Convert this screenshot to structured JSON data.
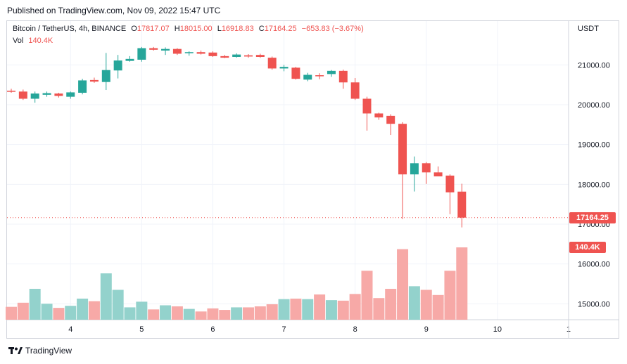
{
  "header": {
    "published": "Published on TradingView.com, Nov 09, 2022 15:47 UTC"
  },
  "legend": {
    "symbol": "Bitcoin / TetherUS, 4h, BINANCE",
    "open_label": "O",
    "open_value": "17817.07",
    "high_label": "H",
    "high_value": "18015.00",
    "low_label": "L",
    "low_value": "16918.83",
    "close_label": "C",
    "close_value": "17164.25",
    "change": "−653.83 (−3.67%)",
    "vol_label": "Vol",
    "vol_value": "140.4K"
  },
  "price_axis": {
    "unit": "USDT",
    "last_price_badge": "17164.25",
    "volume_badge": "140.4K"
  },
  "footer": {
    "brand": "TradingView"
  },
  "colors": {
    "up": "#26a69a",
    "down": "#ef5350",
    "up_volume": "#93d2cc",
    "down_volume": "#f7a9a7",
    "grid": "#f0f3fa",
    "border": "#d1d4dc"
  },
  "chart_data": {
    "type": "candlestick",
    "timeframe": "4h",
    "ylim": [
      14600,
      22100
    ],
    "y_ticks": [
      15000,
      16000,
      17000,
      18000,
      19000,
      20000,
      21000
    ],
    "y_tick_labels": [
      "15000.00",
      "16000.00",
      "17000.00",
      "18000.00",
      "19000.00",
      "20000.00",
      "21000.00"
    ],
    "x_ticks": [
      {
        "label": "4",
        "index": 5
      },
      {
        "label": "5",
        "index": 11
      },
      {
        "label": "6",
        "index": 17
      },
      {
        "label": "7",
        "index": 23
      },
      {
        "label": "8",
        "index": 29
      },
      {
        "label": "9",
        "index": 35
      },
      {
        "label": "10",
        "index": 41
      },
      {
        "label": "1",
        "index": 47
      }
    ],
    "last_close": 17164.25,
    "volume_scale_max": 150000,
    "candles": [
      {
        "o": 20350,
        "h": 20400,
        "l": 20300,
        "c": 20330,
        "v": 25000
      },
      {
        "o": 20330,
        "h": 20380,
        "l": 20120,
        "c": 20150,
        "v": 33000
      },
      {
        "o": 20150,
        "h": 20330,
        "l": 20050,
        "c": 20280,
        "v": 60000
      },
      {
        "o": 20250,
        "h": 20330,
        "l": 20200,
        "c": 20290,
        "v": 31000
      },
      {
        "o": 20280,
        "h": 20300,
        "l": 20180,
        "c": 20220,
        "v": 23000
      },
      {
        "o": 20200,
        "h": 20330,
        "l": 20150,
        "c": 20310,
        "v": 27000
      },
      {
        "o": 20300,
        "h": 20650,
        "l": 20260,
        "c": 20610,
        "v": 41000
      },
      {
        "o": 20620,
        "h": 20680,
        "l": 20550,
        "c": 20580,
        "v": 36000
      },
      {
        "o": 20570,
        "h": 21300,
        "l": 20370,
        "c": 20870,
        "v": 90000
      },
      {
        "o": 20860,
        "h": 21250,
        "l": 20660,
        "c": 21110,
        "v": 58000
      },
      {
        "o": 21100,
        "h": 21220,
        "l": 21080,
        "c": 21150,
        "v": 24000
      },
      {
        "o": 21130,
        "h": 21450,
        "l": 21080,
        "c": 21420,
        "v": 35000
      },
      {
        "o": 21420,
        "h": 21450,
        "l": 21360,
        "c": 21380,
        "v": 20000
      },
      {
        "o": 21360,
        "h": 21440,
        "l": 21250,
        "c": 21400,
        "v": 28000
      },
      {
        "o": 21400,
        "h": 21420,
        "l": 21250,
        "c": 21280,
        "v": 26000
      },
      {
        "o": 21300,
        "h": 21340,
        "l": 21230,
        "c": 21320,
        "v": 21000
      },
      {
        "o": 21320,
        "h": 21360,
        "l": 21260,
        "c": 21280,
        "v": 16000
      },
      {
        "o": 21310,
        "h": 21340,
        "l": 21200,
        "c": 21220,
        "v": 22000
      },
      {
        "o": 21220,
        "h": 21250,
        "l": 21170,
        "c": 21180,
        "v": 19000
      },
      {
        "o": 21200,
        "h": 21290,
        "l": 21180,
        "c": 21260,
        "v": 24000
      },
      {
        "o": 21240,
        "h": 21270,
        "l": 21180,
        "c": 21210,
        "v": 24000
      },
      {
        "o": 21250,
        "h": 21280,
        "l": 21180,
        "c": 21200,
        "v": 26000
      },
      {
        "o": 21180,
        "h": 21210,
        "l": 20880,
        "c": 20910,
        "v": 30000
      },
      {
        "o": 20910,
        "h": 21000,
        "l": 20840,
        "c": 20950,
        "v": 40000
      },
      {
        "o": 20930,
        "h": 20950,
        "l": 20630,
        "c": 20650,
        "v": 41000
      },
      {
        "o": 20630,
        "h": 20800,
        "l": 20590,
        "c": 20750,
        "v": 40000
      },
      {
        "o": 20740,
        "h": 20790,
        "l": 20640,
        "c": 20720,
        "v": 49000
      },
      {
        "o": 20770,
        "h": 20870,
        "l": 20700,
        "c": 20850,
        "v": 38000
      },
      {
        "o": 20850,
        "h": 20880,
        "l": 20400,
        "c": 20560,
        "v": 37000
      },
      {
        "o": 20560,
        "h": 20670,
        "l": 20120,
        "c": 20150,
        "v": 50000
      },
      {
        "o": 20150,
        "h": 20200,
        "l": 19350,
        "c": 19780,
        "v": 95000
      },
      {
        "o": 19780,
        "h": 19800,
        "l": 19620,
        "c": 19680,
        "v": 42000
      },
      {
        "o": 19720,
        "h": 19760,
        "l": 19240,
        "c": 19520,
        "v": 60000
      },
      {
        "o": 19520,
        "h": 19560,
        "l": 17130,
        "c": 18250,
        "v": 137000
      },
      {
        "o": 18250,
        "h": 18700,
        "l": 17820,
        "c": 18530,
        "v": 65000
      },
      {
        "o": 18530,
        "h": 18560,
        "l": 18010,
        "c": 18300,
        "v": 58000
      },
      {
        "o": 18300,
        "h": 18450,
        "l": 18200,
        "c": 18200,
        "v": 48000
      },
      {
        "o": 18220,
        "h": 18250,
        "l": 17250,
        "c": 17800,
        "v": 95000
      },
      {
        "o": 17817.07,
        "h": 18015,
        "l": 16918.83,
        "c": 17164.25,
        "v": 140400
      }
    ]
  }
}
